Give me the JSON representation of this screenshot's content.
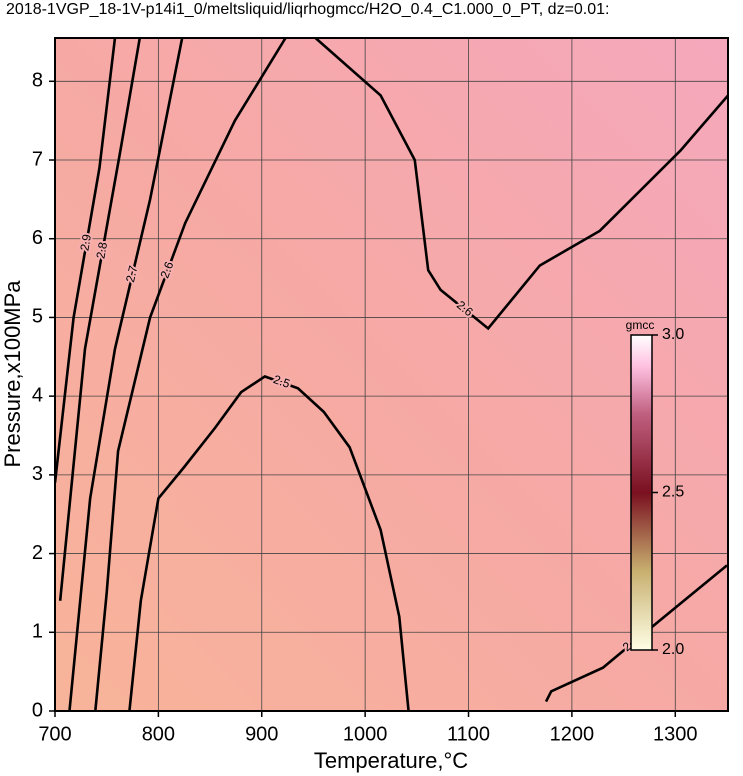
{
  "chart_data": {
    "type": "contour",
    "title": "2018-1VGP_18-1V-p14i1_0/meltsliquid/liqrhogmcc/H2O_0.4_C1.000_0_PT, dz=0.01:",
    "x_label": "Temperature,°C",
    "y_label": "Pressure,x100MPa",
    "xlim": [
      700,
      1351
    ],
    "ylim": [
      0,
      8.55
    ],
    "xticks": [
      700,
      800,
      900,
      1000,
      1100,
      1200,
      1300
    ],
    "yticks": [
      0,
      1,
      2,
      3,
      4,
      5,
      6,
      7,
      8
    ],
    "grid": true,
    "line_color": "#000000",
    "contours": [
      {
        "level": 2.5,
        "x": [
          772,
          783,
          800,
          825,
          855,
          880,
          903,
          935,
          960,
          985,
          1015,
          1033,
          1042
        ],
        "y": [
          0,
          1.4,
          2.7,
          3.1,
          3.6,
          4.05,
          4.25,
          4.1,
          3.8,
          3.35,
          2.3,
          1.2,
          0
        ]
      },
      {
        "level": 2.5,
        "x": [
          1175,
          1180,
          1230,
          1285,
          1350
        ],
        "y": [
          0.12,
          0.25,
          0.55,
          1.15,
          1.85
        ]
      },
      {
        "level": 2.6,
        "x": [
          739,
          750,
          761,
          792,
          826,
          874,
          923
        ],
        "y": [
          0,
          1.5,
          3.3,
          5,
          6.2,
          7.5,
          8.55
        ]
      },
      {
        "level": 2.6,
        "x": [
          952,
          1015,
          1048,
          1061,
          1073,
          1119,
          1169,
          1227,
          1305,
          1351
        ],
        "y": [
          8.55,
          7.82,
          7.0,
          5.6,
          5.35,
          4.86,
          5.66,
          6.1,
          7.12,
          7.82
        ]
      },
      {
        "level": 2.7,
        "x": [
          714,
          734,
          758,
          792,
          823
        ],
        "y": [
          0,
          2.7,
          4.6,
          6.5,
          8.55
        ]
      },
      {
        "level": 2.8,
        "x": [
          705,
          729,
          763,
          782
        ],
        "y": [
          1.4,
          4.6,
          7.1,
          8.55
        ]
      },
      {
        "level": 2.9,
        "x": [
          700,
          718,
          743,
          758
        ],
        "y": [
          2.9,
          5.0,
          6.9,
          8.55
        ]
      }
    ],
    "colorbar": {
      "label": "gmcc",
      "lim": [
        2.0,
        3.0
      ],
      "ticks": [
        {
          "value": 2.0,
          "label": "2.0"
        },
        {
          "value": 2.5,
          "label": "2.5"
        },
        {
          "value": 3.0,
          "label": "3.0"
        }
      ],
      "stops": [
        {
          "value": 2.0,
          "color": "#ffffe6"
        },
        {
          "value": 2.25,
          "color": "#c8b070"
        },
        {
          "value": 2.5,
          "color": "#7a1020"
        },
        {
          "value": 2.75,
          "color": "#c06080"
        },
        {
          "value": 2.9,
          "color": "#ffc0e0"
        },
        {
          "value": 3.0,
          "color": "#ffffff"
        }
      ]
    }
  }
}
